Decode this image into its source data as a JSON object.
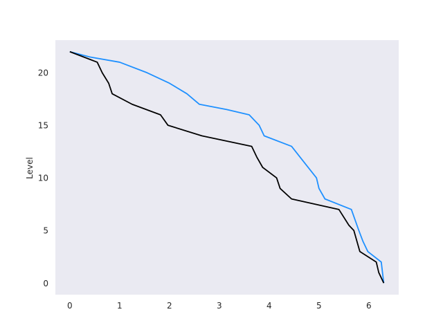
{
  "chart_data": {
    "type": "line",
    "title": "",
    "xlabel": "",
    "ylabel": "Level",
    "xlim": [
      -0.29,
      6.6
    ],
    "ylim": [
      -1.1,
      23.1
    ],
    "xticks": [
      0,
      1,
      2,
      3,
      4,
      5,
      6
    ],
    "yticks": [
      0,
      5,
      10,
      15,
      20
    ],
    "grid": false,
    "background": "#eaeaf2",
    "series": [
      {
        "color": "#1e90ff",
        "x": [
          0,
          0.4,
          1.0,
          1.55,
          2.0,
          2.35,
          2.6,
          3.15,
          3.6,
          3.8,
          3.9,
          4.45,
          4.7,
          4.95,
          5.0,
          5.12,
          5.65,
          5.8,
          5.88,
          5.98,
          6.25,
          6.3
        ],
        "y": [
          22,
          21.5,
          21,
          20,
          19,
          18,
          17,
          16.5,
          16,
          15,
          14,
          13,
          11.5,
          10,
          9,
          8,
          7,
          5,
          4,
          3,
          2,
          0
        ]
      },
      {
        "color": "#000000",
        "x": [
          0,
          0.55,
          0.65,
          0.78,
          0.85,
          1.25,
          1.82,
          1.97,
          2.65,
          3.65,
          3.75,
          3.87,
          4.15,
          4.22,
          4.45,
          5.4,
          5.6,
          5.7,
          5.82,
          6.15,
          6.2,
          6.3
        ],
        "y": [
          22,
          21,
          20,
          19,
          18,
          17,
          16,
          15,
          14,
          13,
          12,
          11,
          10,
          9,
          8,
          7,
          5.5,
          5,
          3,
          2,
          1,
          0
        ]
      }
    ]
  }
}
